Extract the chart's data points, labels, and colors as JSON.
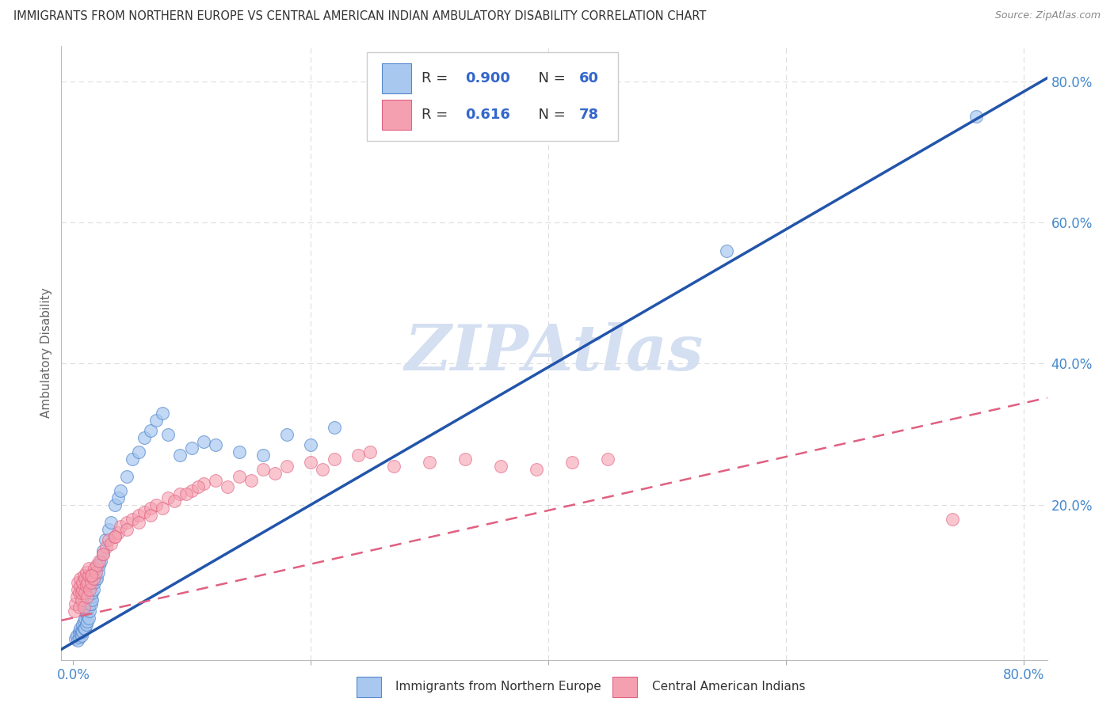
{
  "title": "IMMIGRANTS FROM NORTHERN EUROPE VS CENTRAL AMERICAN INDIAN AMBULATORY DISABILITY CORRELATION CHART",
  "source": "Source: ZipAtlas.com",
  "ylabel": "Ambulatory Disability",
  "blue_R": 0.9,
  "blue_N": 60,
  "pink_R": 0.616,
  "pink_N": 78,
  "blue_scatter_color": "#A8C8F0",
  "blue_edge_color": "#5588CC",
  "pink_scatter_color": "#F5A0B0",
  "pink_edge_color": "#E06080",
  "blue_line_color": "#2255AA",
  "pink_line_color": "#E06080",
  "watermark": "ZIPAtlas",
  "watermark_color": "#D0DCF0",
  "legend_label_blue": "Immigrants from Northern Europe",
  "legend_label_pink": "Central American Indians",
  "R_N_color": "#3366CC",
  "label_color": "#3366CC",
  "tick_color": "#4488CC",
  "grid_color": "#DDDDDD",
  "ylabel_color": "#666666",
  "title_color": "#333333",
  "source_color": "#888888",
  "blue_line_slope": 0.975,
  "blue_line_intercept": 0.005,
  "pink_line_slope": 0.38,
  "pink_line_intercept": 0.04,
  "blue_scatter_x": [
    0.002,
    0.003,
    0.004,
    0.005,
    0.005,
    0.006,
    0.006,
    0.007,
    0.007,
    0.008,
    0.008,
    0.009,
    0.009,
    0.01,
    0.01,
    0.011,
    0.011,
    0.012,
    0.012,
    0.013,
    0.013,
    0.014,
    0.014,
    0.015,
    0.015,
    0.016,
    0.016,
    0.017,
    0.018,
    0.019,
    0.02,
    0.021,
    0.022,
    0.023,
    0.025,
    0.027,
    0.03,
    0.032,
    0.035,
    0.038,
    0.04,
    0.045,
    0.05,
    0.055,
    0.06,
    0.065,
    0.07,
    0.075,
    0.08,
    0.09,
    0.1,
    0.11,
    0.12,
    0.14,
    0.16,
    0.18,
    0.2,
    0.22,
    0.55,
    0.76
  ],
  "blue_scatter_y": [
    0.01,
    0.015,
    0.008,
    0.012,
    0.02,
    0.018,
    0.025,
    0.015,
    0.022,
    0.02,
    0.03,
    0.025,
    0.035,
    0.025,
    0.04,
    0.03,
    0.045,
    0.035,
    0.05,
    0.04,
    0.055,
    0.05,
    0.06,
    0.06,
    0.07,
    0.065,
    0.075,
    0.08,
    0.09,
    0.095,
    0.095,
    0.105,
    0.115,
    0.12,
    0.135,
    0.15,
    0.165,
    0.175,
    0.2,
    0.21,
    0.22,
    0.24,
    0.265,
    0.275,
    0.295,
    0.305,
    0.32,
    0.33,
    0.3,
    0.27,
    0.28,
    0.29,
    0.285,
    0.275,
    0.27,
    0.3,
    0.285,
    0.31,
    0.56,
    0.75
  ],
  "pink_scatter_x": [
    0.001,
    0.002,
    0.003,
    0.004,
    0.004,
    0.005,
    0.005,
    0.006,
    0.006,
    0.007,
    0.007,
    0.008,
    0.008,
    0.009,
    0.009,
    0.01,
    0.01,
    0.011,
    0.011,
    0.012,
    0.012,
    0.013,
    0.013,
    0.014,
    0.015,
    0.016,
    0.017,
    0.018,
    0.019,
    0.02,
    0.022,
    0.025,
    0.028,
    0.03,
    0.032,
    0.035,
    0.038,
    0.04,
    0.045,
    0.05,
    0.055,
    0.06,
    0.065,
    0.07,
    0.08,
    0.09,
    0.1,
    0.11,
    0.12,
    0.14,
    0.16,
    0.18,
    0.2,
    0.22,
    0.24,
    0.27,
    0.3,
    0.33,
    0.36,
    0.39,
    0.42,
    0.45,
    0.015,
    0.025,
    0.035,
    0.045,
    0.055,
    0.065,
    0.075,
    0.085,
    0.095,
    0.105,
    0.13,
    0.15,
    0.17,
    0.21,
    0.25,
    0.74
  ],
  "pink_scatter_y": [
    0.05,
    0.06,
    0.07,
    0.08,
    0.09,
    0.055,
    0.075,
    0.085,
    0.095,
    0.065,
    0.075,
    0.08,
    0.09,
    0.1,
    0.055,
    0.075,
    0.095,
    0.085,
    0.105,
    0.07,
    0.09,
    0.1,
    0.11,
    0.08,
    0.09,
    0.1,
    0.095,
    0.11,
    0.105,
    0.115,
    0.12,
    0.13,
    0.14,
    0.15,
    0.145,
    0.155,
    0.16,
    0.17,
    0.175,
    0.18,
    0.185,
    0.19,
    0.195,
    0.2,
    0.21,
    0.215,
    0.22,
    0.23,
    0.235,
    0.24,
    0.25,
    0.255,
    0.26,
    0.265,
    0.27,
    0.255,
    0.26,
    0.265,
    0.255,
    0.25,
    0.26,
    0.265,
    0.1,
    0.13,
    0.155,
    0.165,
    0.175,
    0.185,
    0.195,
    0.205,
    0.215,
    0.225,
    0.225,
    0.235,
    0.245,
    0.25,
    0.275,
    0.18
  ]
}
